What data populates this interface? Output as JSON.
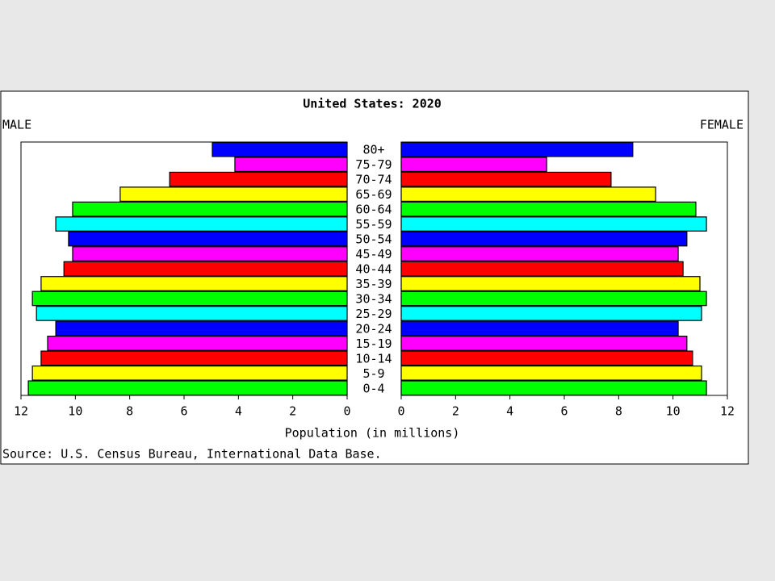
{
  "chart_data": {
    "type": "pyramid",
    "title": "United States: 2020",
    "categories": [
      "80+",
      "75-79",
      "70-74",
      "65-69",
      "60-64",
      "55-59",
      "50-54",
      "45-49",
      "40-44",
      "35-39",
      "30-34",
      "25-29",
      "20-24",
      "15-19",
      "10-14",
      "5-9",
      "0-4"
    ],
    "colors": [
      "#0000ff",
      "#ff00ff",
      "#ff0000",
      "#ffff00",
      "#00ff00",
      "#00ffff",
      "#0000ff",
      "#ff00ff",
      "#ff0000",
      "#ffff00",
      "#00ff00",
      "#00ffff",
      "#0000ff",
      "#ff00ff",
      "#ff0000",
      "#ffff00",
      "#00ff00"
    ],
    "series": [
      {
        "name": "MALE",
        "values": [
          4.96,
          4.13,
          6.53,
          8.35,
          10.1,
          10.72,
          10.25,
          10.1,
          10.42,
          11.26,
          11.58,
          11.43,
          10.72,
          11.02,
          11.26,
          11.58,
          11.73
        ]
      },
      {
        "name": "FEMALE",
        "values": [
          8.52,
          5.35,
          7.72,
          9.36,
          10.84,
          11.23,
          10.51,
          10.19,
          10.37,
          10.99,
          11.23,
          11.05,
          10.19,
          10.51,
          10.72,
          11.05,
          11.23
        ]
      }
    ],
    "xlim": [
      0,
      12
    ],
    "xticks": [
      0,
      2,
      4,
      6,
      8,
      10,
      12
    ],
    "xlabel": "Population (in millions)",
    "source": "Source: U.S. Census Bureau, International Data Base."
  }
}
